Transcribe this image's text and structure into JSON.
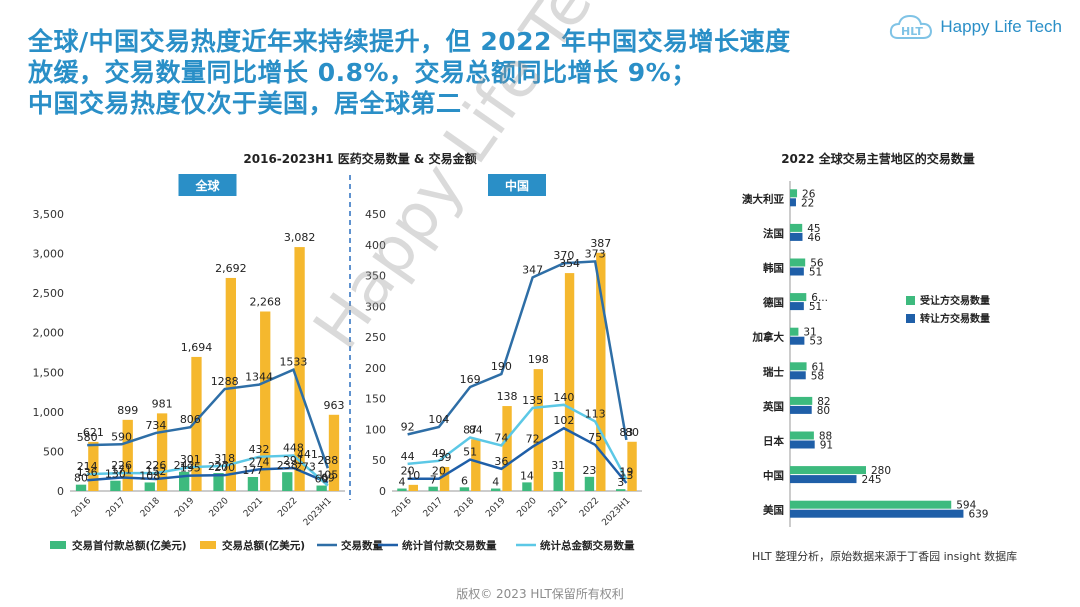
{
  "header": {
    "title_lines": [
      "全球/中国交易热度近年来持续提升，但 2022 年中国交易增长速度",
      "放缓，交易数量同比增长 0.8%，交易总额同比增长 9%；",
      "中国交易热度仅次于美国，居全球第二"
    ],
    "logo_text": "Happy Life Tech"
  },
  "watermark": "Happy Life Tech",
  "footer": "版权© 2023 HLT保留所有权利",
  "source_note": "HLT 整理分析，原始数据来源于丁香园 insight 数据库",
  "colors": {
    "green": "#3dba7e",
    "orange": "#f5b82e",
    "darkblue": "#2e6ea6",
    "lightblue": "#5cc8e6",
    "navy": "#1f5fa8",
    "accent": "#2a8fc7"
  },
  "chart_data": [
    {
      "type": "bar",
      "title": "2016-2023H1 医药交易数量 & 交易金额",
      "panel_label": "全球",
      "categories": [
        "2016",
        "2017",
        "2018",
        "2019",
        "2020",
        "2021",
        "2022",
        "2023H1"
      ],
      "ylim": [
        0,
        3500
      ],
      "yticks": [
        "0",
        "500",
        "1,000",
        "1,500",
        "2,000",
        "2,500",
        "3,000",
        "3,500"
      ],
      "series": [
        {
          "name": "交易首付款总额(亿美元)",
          "kind": "bar",
          "color": "#3dba7e",
          "values": [
            80,
            130,
            108,
            242,
            227,
            177,
            238,
            69
          ],
          "labels": [
            "80",
            "130",
            "108",
            "242",
            "227",
            "177",
            "238",
            "69"
          ]
        },
        {
          "name": "交易总额(亿美元)",
          "kind": "bar",
          "color": "#f5b82e",
          "values": [
            621,
            899,
            981,
            1694,
            2692,
            2268,
            3082,
            963
          ],
          "labels": [
            "621",
            "899",
            "981",
            "1,694",
            "2,692",
            "2,268",
            "3,082",
            "963"
          ]
        },
        {
          "name": "交易数量",
          "kind": "line",
          "color": "#2e6ea6",
          "values": [
            580,
            590,
            734,
            806,
            1288,
            1344,
            1533,
            288
          ],
          "labels": [
            "580",
            "590",
            "734",
            "806",
            "1288",
            "1344",
            "1533",
            "288"
          ]
        },
        {
          "name": "统计首付款交易数量",
          "kind": "line",
          "color": "#1f5fa8",
          "values": [
            136,
            171,
            152,
            195,
            200,
            274,
            291,
            105
          ],
          "labels": [
            "136",
            "171",
            "152",
            "195",
            "200",
            "274",
            "291",
            "105"
          ]
        },
        {
          "name": "统计总金额交易数量",
          "kind": "line",
          "color": "#5cc8e6",
          "values": [
            214,
            226,
            226,
            301,
            318,
            432,
            448,
            69
          ],
          "labels": [
            "214",
            "226",
            "226",
            "301",
            "318",
            "432",
            "448",
            "69"
          ]
        }
      ],
      "extra_labels": [
        "273",
        "441"
      ]
    },
    {
      "type": "bar",
      "panel_label": "中国",
      "categories": [
        "2016",
        "2017",
        "2018",
        "2019",
        "2020",
        "2021",
        "2022",
        "2023H1"
      ],
      "ylim": [
        0,
        450
      ],
      "yticks": [
        "0",
        "50",
        "100",
        "150",
        "200",
        "250",
        "300",
        "350",
        "400",
        "450"
      ],
      "series": [
        {
          "name": "交易首付款总额(亿美元)",
          "kind": "bar",
          "color": "#3dba7e",
          "values": [
            4,
            7,
            6,
            4,
            14,
            31,
            23,
            3
          ],
          "labels": [
            "4",
            "7",
            "6",
            "4",
            "14",
            "31",
            "23",
            "3"
          ]
        },
        {
          "name": "交易总额(亿美元)",
          "kind": "bar",
          "color": "#f5b82e",
          "values": [
            10,
            39,
            84,
            138,
            198,
            354,
            387,
            80
          ],
          "labels": [
            "10",
            "39",
            "84",
            "138",
            "198",
            "354",
            "387",
            "80"
          ]
        },
        {
          "name": "交易数量",
          "kind": "line",
          "color": "#2e6ea6",
          "values": [
            92,
            104,
            169,
            190,
            347,
            370,
            373,
            83
          ],
          "labels": [
            "92",
            "104",
            "169",
            "190",
            "347",
            "370",
            "373",
            "83"
          ]
        },
        {
          "name": "统计首付款交易数量",
          "kind": "line",
          "color": "#1f5fa8",
          "values": [
            20,
            20,
            51,
            36,
            72,
            102,
            75,
            13
          ],
          "labels": [
            "20",
            "20",
            "51",
            "36",
            "72",
            "102",
            "75",
            "13"
          ]
        },
        {
          "name": "统计总金额交易数量",
          "kind": "line",
          "color": "#5cc8e6",
          "values": [
            44,
            49,
            87,
            74,
            135,
            140,
            113,
            19
          ],
          "labels": [
            "44",
            "49",
            "87",
            "74",
            "135",
            "140",
            "113",
            "19"
          ]
        }
      ]
    },
    {
      "type": "bar",
      "orientation": "horizontal",
      "title": "2022 全球交易主营地区的交易数量",
      "categories": [
        "澳大利亚",
        "法国",
        "韩国",
        "德国",
        "加拿大",
        "瑞士",
        "英国",
        "日本",
        "中国",
        "美国"
      ],
      "series": [
        {
          "name": "受让方交易数量",
          "color": "#3dba7e",
          "values": [
            26,
            45,
            56,
            60,
            31,
            61,
            82,
            88,
            280,
            594
          ],
          "labels": [
            "26",
            "45",
            "56",
            "6...",
            "31",
            "61",
            "82",
            "88",
            "280",
            "594"
          ]
        },
        {
          "name": "转让方交易数量",
          "color": "#1f5fa8",
          "values": [
            22,
            46,
            51,
            51,
            53,
            58,
            80,
            91,
            245,
            639
          ],
          "labels": [
            "22",
            "46",
            "51",
            "51",
            "53",
            "58",
            "80",
            "91",
            "245",
            "639"
          ]
        }
      ],
      "xlim": [
        0,
        700
      ]
    }
  ],
  "legend_main": [
    "交易首付款总额(亿美元)",
    "交易总额(亿美元)",
    "交易数量",
    "统计首付款交易数量",
    "统计总金额交易数量"
  ]
}
